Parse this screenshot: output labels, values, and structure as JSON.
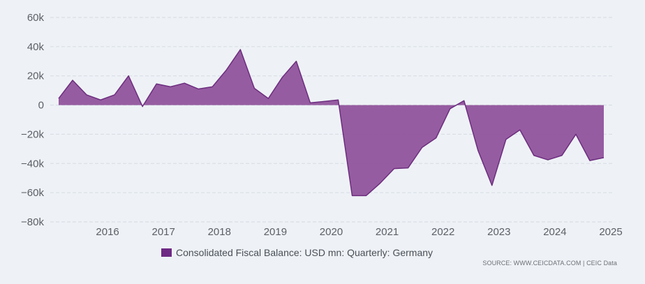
{
  "colors": {
    "background": "#eef2f6",
    "area_fill": "#8e4f99",
    "area_line": "#6d2d7f",
    "grid": "#d5dbe3",
    "legend_swatch": "#6e2a84"
  },
  "legend": {
    "label": "Consolidated Fiscal Balance: USD mn: Quarterly: Germany"
  },
  "source": {
    "text": "SOURCE: WWW.CEICDATA.COM | CEIC Data"
  },
  "chart_data": {
    "type": "area",
    "title": "",
    "xlabel": "",
    "ylabel": "",
    "series": [
      {
        "name": "Consolidated Fiscal Balance: USD mn: Quarterly: Germany",
        "x": [
          2015.125,
          2015.375,
          2015.625,
          2015.875,
          2016.125,
          2016.375,
          2016.625,
          2016.875,
          2017.125,
          2017.375,
          2017.625,
          2017.875,
          2018.125,
          2018.375,
          2018.625,
          2018.875,
          2019.125,
          2019.375,
          2019.625,
          2019.875,
          2020.125,
          2020.375,
          2020.625,
          2020.875,
          2021.125,
          2021.375,
          2021.625,
          2021.875,
          2022.125,
          2022.375,
          2022.625,
          2022.875,
          2023.125,
          2023.375,
          2023.625,
          2023.875,
          2024.125,
          2024.375,
          2024.625,
          2024.875
        ],
        "values": [
          4500,
          17000,
          7000,
          3500,
          7000,
          20000,
          -1000,
          14500,
          12500,
          15000,
          11000,
          12500,
          24000,
          38000,
          11500,
          4500,
          19000,
          30000,
          1500,
          2500,
          3500,
          -62000,
          -62000,
          -53500,
          -43500,
          -43000,
          -29000,
          -22500,
          -2500,
          3000,
          -31000,
          -55000,
          -23500,
          -17000,
          -34500,
          -37500,
          -34500,
          -20000,
          -38000,
          -36000
        ]
      }
    ],
    "y_ticks": [
      60000,
      40000,
      20000,
      0,
      -20000,
      -40000,
      -60000,
      -80000
    ],
    "y_tick_labels": [
      "60k",
      "40k",
      "20k",
      "0",
      "−20k",
      "−40k",
      "−60k",
      "−80k"
    ],
    "x_ticks": [
      2016,
      2017,
      2018,
      2019,
      2020,
      2021,
      2022,
      2023,
      2024,
      2025
    ],
    "x_tick_labels": [
      "2016",
      "2017",
      "2018",
      "2019",
      "2020",
      "2021",
      "2022",
      "2023",
      "2024",
      "2025"
    ],
    "ylim": [
      -80000,
      60000
    ],
    "xlim": [
      2015.125,
      2025
    ],
    "grid": true
  }
}
